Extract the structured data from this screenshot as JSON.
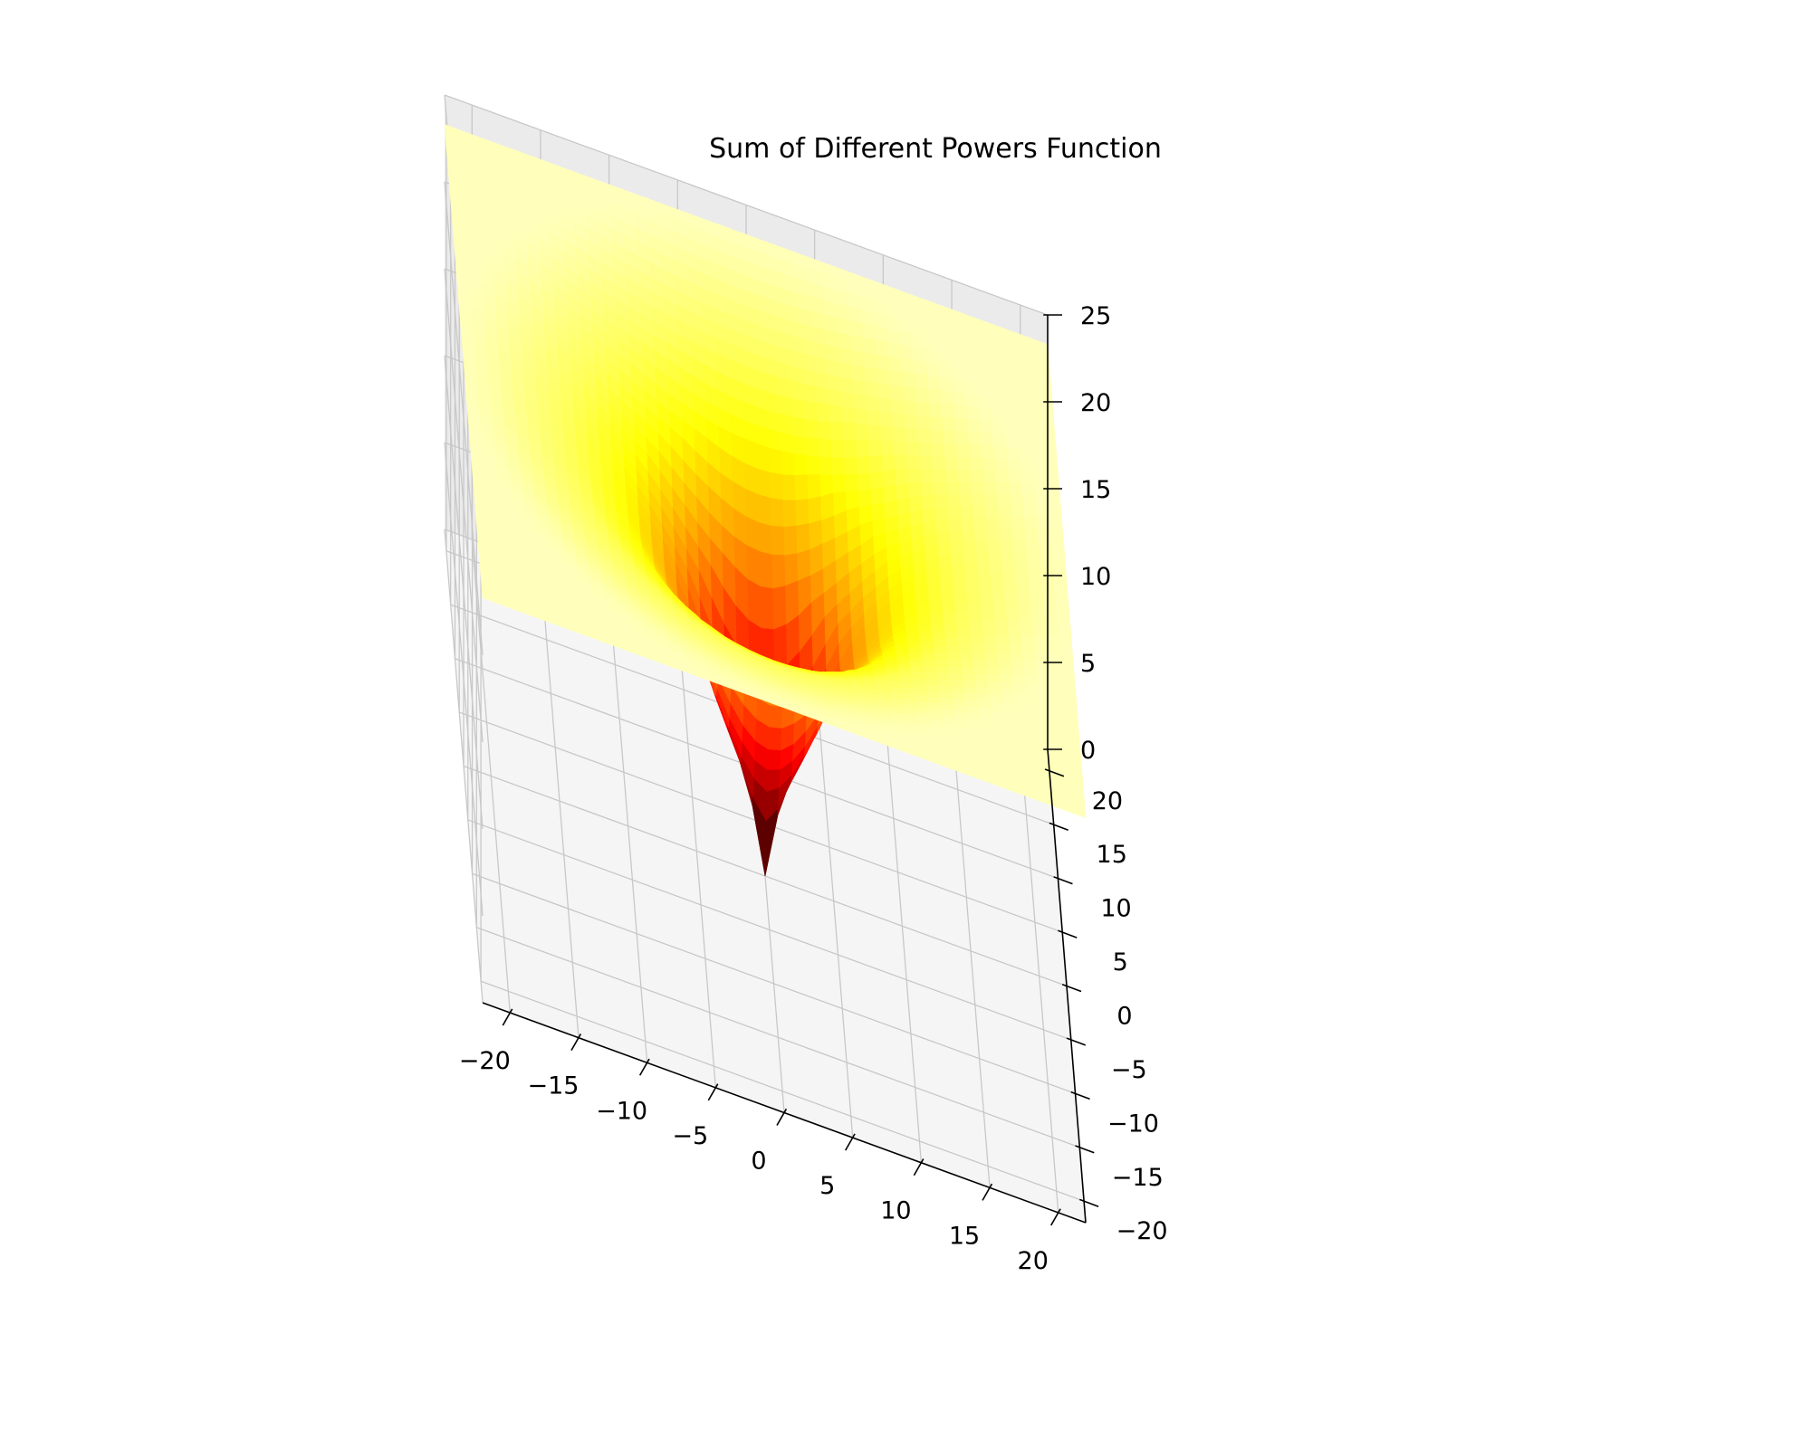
{
  "chart_data": {
    "type": "surface",
    "title": "Sum of Different Powers Function",
    "xlabel": "",
    "ylabel": "",
    "zlabel": "",
    "x_ticks": [
      -20,
      -15,
      -10,
      -5,
      0,
      5,
      10,
      15,
      20
    ],
    "y_ticks": [
      -20,
      -15,
      -10,
      -5,
      0,
      5,
      10,
      15,
      20
    ],
    "z_ticks": [
      0,
      5,
      10,
      15,
      20,
      25
    ],
    "x_tick_labels": [
      "−20",
      "−15",
      "−10",
      "−5",
      "0",
      "5",
      "10",
      "15",
      "20"
    ],
    "y_tick_labels": [
      "−20",
      "−15",
      "−10",
      "−5",
      "0",
      "5",
      "10",
      "15",
      "20"
    ],
    "z_tick_labels": [
      "0",
      "5",
      "10",
      "15",
      "20",
      "25"
    ],
    "xlim": [
      -22,
      22
    ],
    "ylim": [
      -22,
      22
    ],
    "zlim": [
      0,
      25
    ],
    "grid": true,
    "colormap": "hot",
    "colors": {
      "pane_left": "#f2f2f2",
      "pane_back": "#ebebeb",
      "pane_floor": "#f5f5f5",
      "grid": "#c8c8c8",
      "axis": "#000000"
    },
    "surface_samples": [
      {
        "r": 0,
        "z": 0
      },
      {
        "r": 1,
        "z": 4.1
      },
      {
        "r": 2,
        "z": 6.4
      },
      {
        "r": 3,
        "z": 8.3
      },
      {
        "r": 4,
        "z": 10.2
      },
      {
        "r": 5,
        "z": 12.3
      },
      {
        "r": 6,
        "z": 14.2
      },
      {
        "r": 8,
        "z": 16.6
      },
      {
        "r": 10,
        "z": 18.6
      },
      {
        "r": 14,
        "z": 20.8
      },
      {
        "r": 20,
        "z": 22.8
      },
      {
        "r": 22,
        "z": 23.3
      }
    ]
  }
}
